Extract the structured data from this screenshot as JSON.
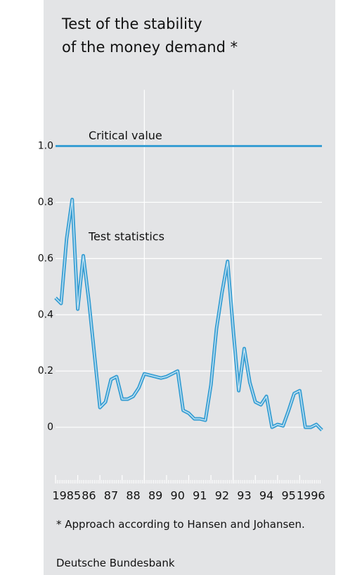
{
  "chart_data": {
    "type": "line",
    "title": [
      "Test of the stability",
      "of the money demand *"
    ],
    "x": [
      1985,
      1985.25,
      1985.5,
      1985.75,
      1986,
      1986.25,
      1986.5,
      1986.75,
      1987,
      1987.25,
      1987.5,
      1987.75,
      1988,
      1988.25,
      1988.5,
      1988.75,
      1989,
      1989.25,
      1989.5,
      1989.75,
      1990,
      1990.25,
      1990.5,
      1990.75,
      1991,
      1991.25,
      1991.5,
      1991.75,
      1992,
      1992.25,
      1992.5,
      1992.75,
      1993,
      1993.25,
      1993.5,
      1993.75,
      1994,
      1994.25,
      1994.5,
      1994.75,
      1995,
      1995.25,
      1995.5,
      1995.75,
      1996,
      1996.25,
      1996.5,
      1996.75,
      1997
    ],
    "series": [
      {
        "name": "Test statistics",
        "color": "#3a9fd3",
        "values": [
          0.46,
          0.44,
          0.67,
          0.81,
          0.42,
          0.61,
          0.45,
          0.26,
          0.07,
          0.09,
          0.17,
          0.18,
          0.1,
          0.1,
          0.11,
          0.14,
          0.19,
          0.185,
          0.18,
          0.175,
          0.18,
          0.19,
          0.2,
          0.06,
          0.05,
          0.03,
          0.03,
          0.025,
          0.15,
          0.35,
          0.48,
          0.59,
          0.35,
          0.13,
          0.28,
          0.16,
          0.09,
          0.08,
          0.11,
          0,
          0.01,
          0.005,
          0.06,
          0.12,
          0.13,
          0,
          0,
          0.01,
          -0.01
        ]
      }
    ],
    "critical_value": {
      "label": "Critical value",
      "value": 1,
      "color": "#3a9fd3"
    },
    "xlim": [
      1985,
      1997
    ],
    "xticks": [
      {
        "value": 1985,
        "label": "1985"
      },
      {
        "value": 1986,
        "label": "86"
      },
      {
        "value": 1987,
        "label": "87"
      },
      {
        "value": 1988,
        "label": "88"
      },
      {
        "value": 1989,
        "label": "89"
      },
      {
        "value": 1990,
        "label": "90"
      },
      {
        "value": 1991,
        "label": "91"
      },
      {
        "value": 1992,
        "label": "92"
      },
      {
        "value": 1993,
        "label": "93"
      },
      {
        "value": 1994,
        "label": "94"
      },
      {
        "value": 1995,
        "label": "95"
      },
      {
        "value": 1996,
        "label": "1996"
      }
    ],
    "xgrid": [
      1989,
      1993
    ],
    "ylim": [
      -0.2,
      1.2
    ],
    "yticks": [
      {
        "value": 1,
        "label": "1.0"
      },
      0.8,
      0.6,
      0.4,
      0.2,
      0
    ],
    "grid": true,
    "footnote": "* Approach according to Hansen and Johansen.",
    "source": "Deutsche Bundesbank"
  }
}
